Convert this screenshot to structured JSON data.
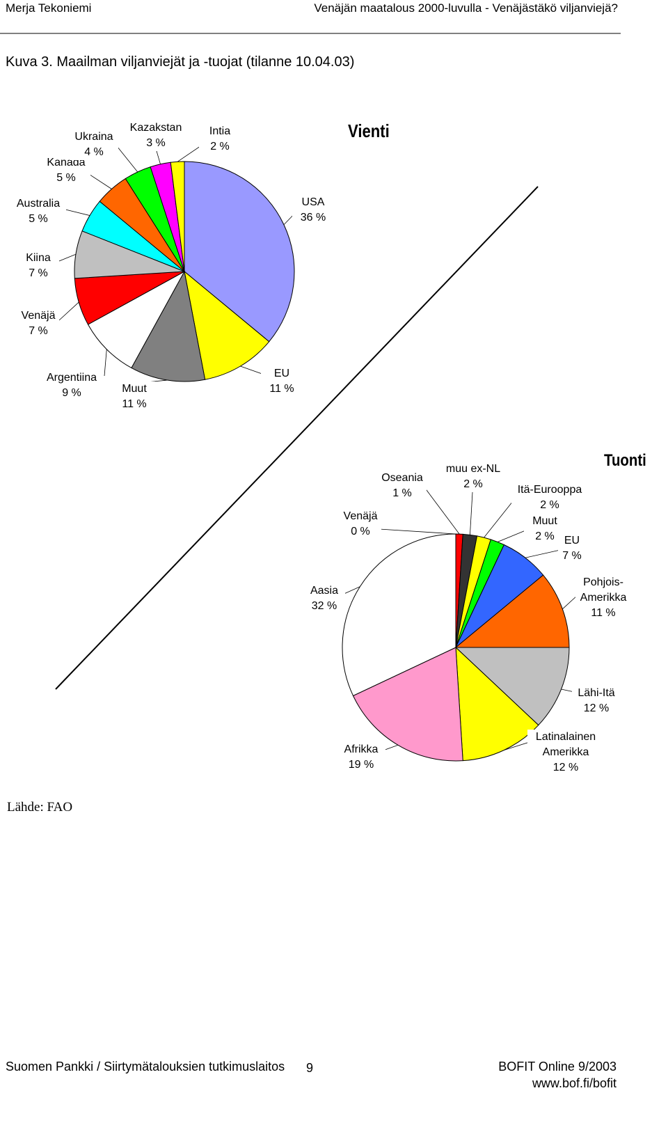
{
  "header": {
    "author": "Merja Tekoniemi",
    "title": "Venäjän maatalous 2000-luvulla - Venäjästäkö viljanviejä?"
  },
  "caption": "Kuva 3. Maailman viljanviejät ja -tuojat (tilanne 10.04.03)",
  "chart_data": [
    {
      "type": "pie",
      "title": "Vienti",
      "categories": [
        "USA",
        "EU",
        "Muut",
        "Argentiina",
        "Venäjä",
        "Kiina",
        "Australia",
        "Kanada",
        "Ukraina",
        "Kazakstan",
        "Intia"
      ],
      "values": [
        36,
        11,
        11,
        9,
        7,
        7,
        5,
        5,
        4,
        3,
        2
      ],
      "value_labels": [
        "36 %",
        "11 %",
        "11 %",
        "9 %",
        "7 %",
        "7 %",
        "5 %",
        "5 %",
        "4 %",
        "3 %",
        "2 %"
      ],
      "colors": [
        "#9999ff",
        "#ffff00",
        "#808080",
        "#ffffff",
        "#ff0000",
        "#c0c0c0",
        "#00ffff",
        "#ff6600",
        "#00ff00",
        "#ff00ff",
        "#ffff00"
      ]
    },
    {
      "type": "pie",
      "title": "Tuonti",
      "categories": [
        "Venäjä",
        "Oseania",
        "muu ex-NL",
        "Itä-Eurooppa",
        "Muut",
        "EU",
        "Pohjois-Amerikka",
        "Lähi-Itä",
        "Latinalainen Amerikka",
        "Afrikka",
        "Aasia"
      ],
      "values": [
        0,
        1,
        2,
        2,
        2,
        7,
        11,
        12,
        12,
        19,
        32
      ],
      "value_labels": [
        "0 %",
        "1 %",
        "2 %",
        "2 %",
        "2 %",
        "7 %",
        "11 %",
        "12 %",
        "12 %",
        "19 %",
        "32 %"
      ],
      "colors": [
        "#ffff00",
        "#ff0000",
        "#333333",
        "#ffff00",
        "#00ff00",
        "#3366ff",
        "#ff6600",
        "#c0c0c0",
        "#ffff00",
        "#ff99cc",
        "#ffffff"
      ]
    }
  ],
  "source": "Lähde: FAO",
  "footer": {
    "left": "Suomen Pankki / Siirtymätalouksien tutkimuslaitos",
    "page": "9",
    "right": "BOFIT Online 9/2003",
    "url": "www.bof.fi/bofit"
  }
}
